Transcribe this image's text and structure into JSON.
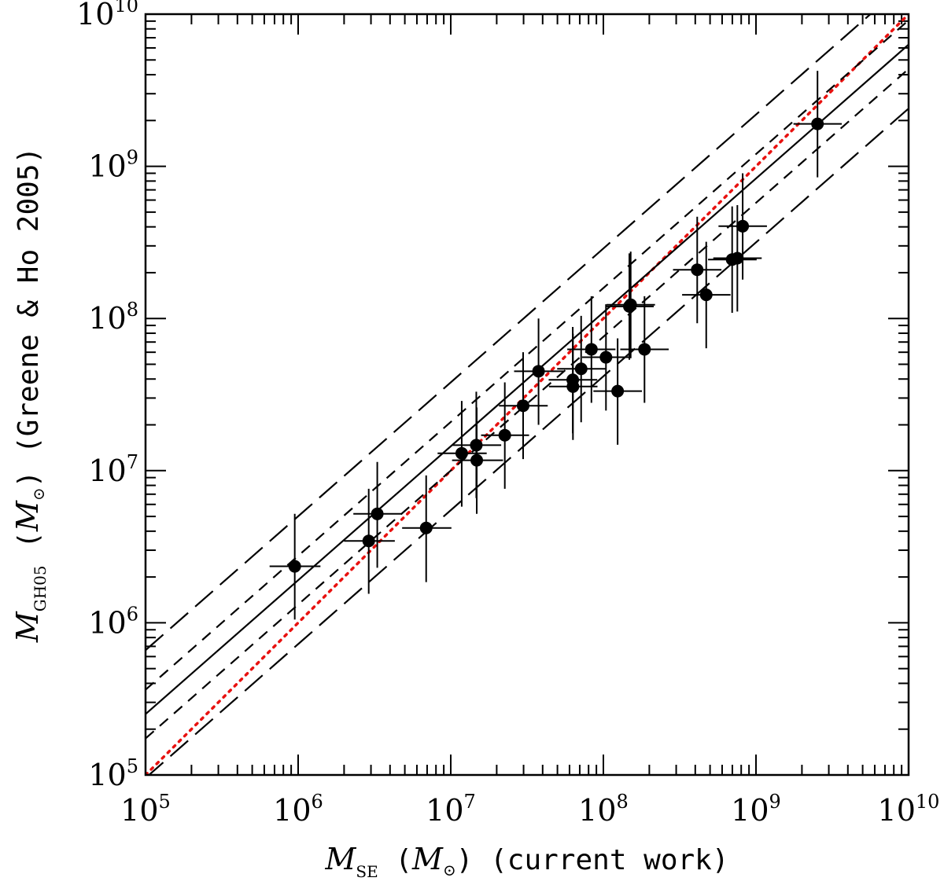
{
  "chart_data": {
    "type": "scatter",
    "xscale": "log",
    "yscale": "log",
    "xlim": [
      100000,
      10000000000
    ],
    "ylim": [
      100000,
      10000000000
    ],
    "x_tick_labels": [
      {
        "base": "10",
        "exp": "5",
        "value": 100000
      },
      {
        "base": "10",
        "exp": "6",
        "value": 1000000
      },
      {
        "base": "10",
        "exp": "7",
        "value": 10000000
      },
      {
        "base": "10",
        "exp": "8",
        "value": 100000000
      },
      {
        "base": "10",
        "exp": "9",
        "value": 1000000000
      },
      {
        "base": "10",
        "exp": "10",
        "value": 10000000000
      }
    ],
    "y_tick_labels": [
      {
        "base": "10",
        "exp": "5",
        "value": 100000
      },
      {
        "base": "10",
        "exp": "6",
        "value": 1000000
      },
      {
        "base": "10",
        "exp": "7",
        "value": 10000000
      },
      {
        "base": "10",
        "exp": "8",
        "value": 100000000
      },
      {
        "base": "10",
        "exp": "9",
        "value": 1000000000
      },
      {
        "base": "10",
        "exp": "10",
        "value": 10000000000
      }
    ],
    "xlabel": {
      "symbol": "M",
      "sub": "SE",
      "unit_open": " (",
      "unit_symbol": "M",
      "unit_close": ")",
      "note": " (current work)"
    },
    "ylabel": {
      "symbol": "M",
      "sub": "GH05",
      "unit_open": " (",
      "unit_symbol": "M",
      "unit_close": ")",
      "note": " (Greene & Ho 2005)"
    },
    "points": [
      {
        "x": 950000,
        "y": 2350000,
        "xerr_lo": 650000,
        "xerr_hi": 1400000,
        "yerr_lo": 1050000,
        "yerr_hi": 5200000
      },
      {
        "x": 2900000,
        "y": 3450000,
        "xerr_lo": 2000000,
        "xerr_hi": 4300000,
        "yerr_lo": 1550000,
        "yerr_hi": 7600000
      },
      {
        "x": 3300000,
        "y": 5200000,
        "xerr_lo": 2300000,
        "xerr_hi": 4800000,
        "yerr_lo": 2300000,
        "yerr_hi": 11400000
      },
      {
        "x": 6900000,
        "y": 4200000,
        "xerr_lo": 4800000,
        "xerr_hi": 10100000,
        "yerr_lo": 1850000,
        "yerr_hi": 9300000
      },
      {
        "x": 11800000,
        "y": 13000000,
        "xerr_lo": 8200000,
        "xerr_hi": 17200000,
        "yerr_lo": 5800000,
        "yerr_hi": 28700000
      },
      {
        "x": 14700000,
        "y": 14700000,
        "xerr_lo": 10300000,
        "xerr_hi": 21400000,
        "yerr_lo": 6600000,
        "yerr_hi": 33000000
      },
      {
        "x": 14800000,
        "y": 11700000,
        "xerr_lo": 10200000,
        "xerr_hi": 22000000,
        "yerr_lo": 5200000,
        "yerr_hi": 26000000
      },
      {
        "x": 22600000,
        "y": 17100000,
        "xerr_lo": 15800000,
        "xerr_hi": 32600000,
        "yerr_lo": 7600000,
        "yerr_hi": 38000000
      },
      {
        "x": 29800000,
        "y": 26700000,
        "xerr_lo": 20700000,
        "xerr_hi": 43200000,
        "yerr_lo": 11900000,
        "yerr_hi": 60000000
      },
      {
        "x": 37600000,
        "y": 45000000,
        "xerr_lo": 26000000,
        "xerr_hi": 54700000,
        "yerr_lo": 20000000,
        "yerr_hi": 100000000
      },
      {
        "x": 63000000,
        "y": 39500000,
        "xerr_lo": 43800000,
        "xerr_hi": 91200000,
        "yerr_lo": 17600000,
        "yerr_hi": 88000000
      },
      {
        "x": 63200000,
        "y": 35700000,
        "xerr_lo": 44000000,
        "xerr_hi": 91500000,
        "yerr_lo": 15900000,
        "yerr_hi": 79500000
      },
      {
        "x": 71500000,
        "y": 46700000,
        "xerr_lo": 49800000,
        "xerr_hi": 103000000,
        "yerr_lo": 20800000,
        "yerr_hi": 104000000
      },
      {
        "x": 83500000,
        "y": 62700000,
        "xerr_lo": 58000000,
        "xerr_hi": 120000000,
        "yerr_lo": 27900000,
        "yerr_hi": 140000000
      },
      {
        "x": 104000000,
        "y": 55600000,
        "xerr_lo": 72500000,
        "xerr_hi": 150000000,
        "yerr_lo": 24800000,
        "yerr_hi": 124000000
      },
      {
        "x": 124000000,
        "y": 33300000,
        "xerr_lo": 86000000,
        "xerr_hi": 179000000,
        "yerr_lo": 14800000,
        "yerr_hi": 74000000
      },
      {
        "x": 151000000,
        "y": 123000000,
        "xerr_lo": 105000000,
        "xerr_hi": 218000000,
        "yerr_lo": 54800000,
        "yerr_hi": 275000000
      },
      {
        "x": 148000000,
        "y": 120000000,
        "xerr_lo": 103000000,
        "xerr_hi": 214000000,
        "yerr_lo": 53500000,
        "yerr_hi": 268000000
      },
      {
        "x": 186000000,
        "y": 62700000,
        "xerr_lo": 129000000,
        "xerr_hi": 268000000,
        "yerr_lo": 27900000,
        "yerr_hi": 140000000
      },
      {
        "x": 412000000,
        "y": 209000000,
        "xerr_lo": 286000000,
        "xerr_hi": 594000000,
        "yerr_lo": 93000000,
        "yerr_hi": 466000000
      },
      {
        "x": 472000000,
        "y": 143000000,
        "xerr_lo": 328000000,
        "xerr_hi": 681000000,
        "yerr_lo": 63700000,
        "yerr_hi": 319000000
      },
      {
        "x": 698000000,
        "y": 244000000,
        "xerr_lo": 485000000,
        "xerr_hi": 1010000000,
        "yerr_lo": 109000000,
        "yerr_hi": 545000000
      },
      {
        "x": 755000000,
        "y": 249000000,
        "xerr_lo": 525000000,
        "xerr_hi": 1090000000,
        "yerr_lo": 111000000,
        "yerr_hi": 556000000
      },
      {
        "x": 818000000,
        "y": 404000000,
        "xerr_lo": 568000000,
        "xerr_hi": 1180000000,
        "yerr_lo": 180000000,
        "yerr_hi": 900000000
      },
      {
        "x": 2530000000,
        "y": 1900000000,
        "xerr_lo": 1760000000,
        "xerr_hi": 3650000000,
        "yerr_lo": 846000000,
        "yerr_hi": 4240000000
      }
    ],
    "lines": [
      {
        "name": "one-to-one",
        "style": "dotted",
        "color": "#e8110f",
        "slope": 1,
        "intercept_log": 0
      },
      {
        "name": "best-fit",
        "style": "solid",
        "color": "#000000",
        "slope": 0.88,
        "intercept_log": 1.0
      },
      {
        "name": "fit-plus-1sigma",
        "style": "short-dash",
        "color": "#000000",
        "slope": 0.88,
        "intercept_log": 1.16
      },
      {
        "name": "fit-minus-1sigma",
        "style": "short-dash",
        "color": "#000000",
        "slope": 0.88,
        "intercept_log": 0.84
      },
      {
        "name": "fit-plus-2sigma",
        "style": "long-dash",
        "color": "#000000",
        "slope": 0.88,
        "intercept_log": 1.42
      },
      {
        "name": "fit-minus-2sigma",
        "style": "long-dash",
        "color": "#000000",
        "slope": 0.88,
        "intercept_log": 0.58
      }
    ]
  }
}
